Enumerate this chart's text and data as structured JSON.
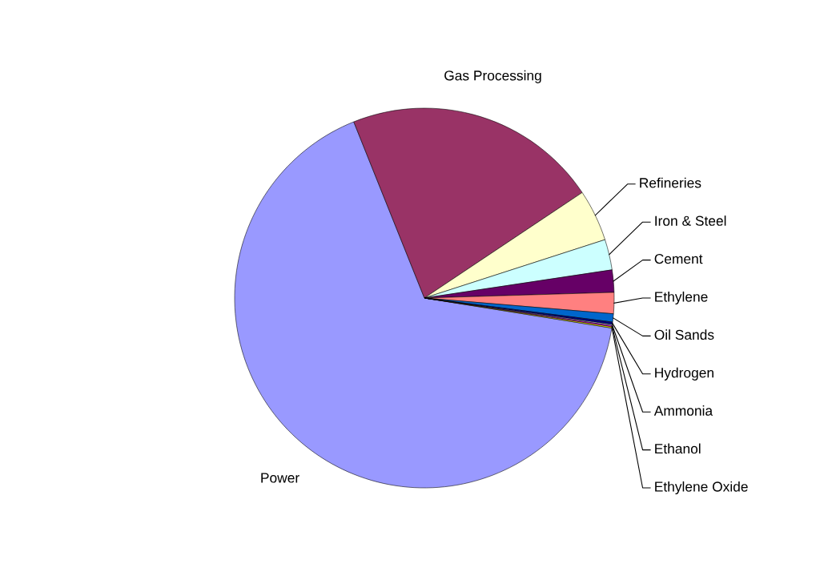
{
  "chart_data": {
    "type": "pie",
    "categories": [
      "Power",
      "Gas Processing",
      "Refineries",
      "Iron & Steel",
      "Cement",
      "Ethylene",
      "Oil Sands",
      "Hydrogen",
      "Ammonia",
      "Ethanol",
      "Ethylene Oxide"
    ],
    "values": [
      66.4,
      21.7,
      4.4,
      2.6,
      1.9,
      1.8,
      0.7,
      0.2,
      0.1,
      0.1,
      0.1
    ],
    "colors": [
      "#9999ff",
      "#993366",
      "#ffffcc",
      "#ccffff",
      "#660066",
      "#ff8080",
      "#0066cc",
      "#000080",
      "#ccccff",
      "#ff00ff",
      "#ffff00"
    ],
    "legend": false
  }
}
